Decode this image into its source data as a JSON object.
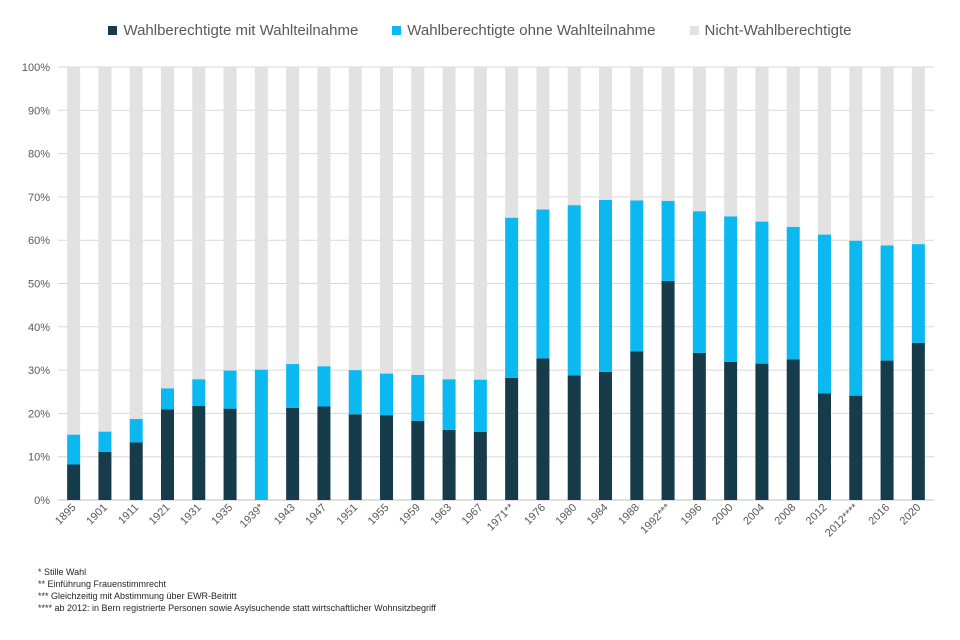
{
  "chart_data": {
    "type": "bar",
    "stacked": true,
    "categories": [
      "1895",
      "1901",
      "1911",
      "1921",
      "1931",
      "1935",
      "1939*",
      "1943",
      "1947",
      "1951",
      "1955",
      "1959",
      "1963",
      "1967",
      "1971**",
      "1976",
      "1980",
      "1984",
      "1988",
      "1992***",
      "1996",
      "2000",
      "2004",
      "2008",
      "2012",
      "2012****",
      "2016",
      "2020"
    ],
    "series": [
      {
        "name": "Wahlberechtigte mit Wahlteilnahme",
        "color": "#163b4b",
        "values": [
          8.2,
          11.1,
          13.3,
          20.9,
          21.7,
          21.1,
          0,
          21.3,
          21.6,
          19.8,
          19.6,
          18.3,
          16.2,
          15.7,
          28.2,
          32.7,
          28.8,
          29.6,
          34.3,
          50.6,
          34.0,
          31.9,
          31.5,
          32.5,
          24.6,
          24.1,
          32.2,
          36.3
        ]
      },
      {
        "name": "Wahlberechtigte ohne Wahlteilnahme",
        "color": "#0cb8f0",
        "values": [
          6.9,
          4.7,
          5.4,
          4.9,
          6.2,
          8.8,
          30.1,
          10.1,
          9.3,
          10.2,
          9.6,
          10.6,
          11.7,
          12.1,
          37.0,
          34.4,
          39.3,
          39.7,
          34.9,
          18.5,
          32.7,
          33.6,
          32.8,
          30.6,
          36.7,
          35.8,
          26.6,
          22.8
        ]
      },
      {
        "name": "Nicht-Wahlberechtigte",
        "color": "#e2e2e2",
        "values": [
          84.9,
          84.2,
          81.3,
          74.2,
          72.1,
          70.1,
          69.9,
          68.6,
          69.1,
          70.0,
          70.8,
          71.1,
          72.1,
          72.2,
          34.8,
          32.9,
          31.9,
          30.7,
          30.8,
          30.9,
          33.3,
          34.5,
          35.7,
          36.9,
          38.7,
          40.1,
          41.2,
          40.9
        ]
      }
    ],
    "yticks": [
      "0%",
      "10%",
      "20%",
      "30%",
      "40%",
      "50%",
      "60%",
      "70%",
      "80%",
      "90%",
      "100%"
    ],
    "ylim": [
      0,
      100
    ],
    "grid": true,
    "legend_position": "top-center"
  },
  "notes": [
    "* Stille Wahl",
    "** Einführung Frauenstimmrecht",
    "*** Gleichzeitig mit Abstimmung über EWR-Beitritt",
    "**** ab 2012: in Bern registrierte Personen sowie Asylsuchende statt wirtschaftlicher Wohnsitzbegriff"
  ]
}
